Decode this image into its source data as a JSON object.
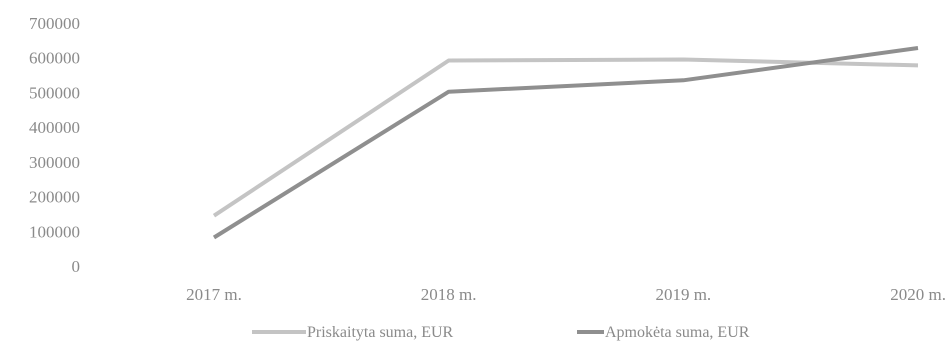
{
  "chart_data": {
    "type": "line",
    "categories": [
      "2017 m.",
      "2018 m.",
      "2019 m.",
      "2020 m."
    ],
    "series": [
      {
        "name": "Priskaityta suma, EUR",
        "values": [
          145000,
          592000,
          595000,
          578000
        ],
        "color": "#c4c4c4"
      },
      {
        "name": "Apmokėta suma, EUR",
        "values": [
          82000,
          502000,
          535000,
          628000
        ],
        "color": "#8f8f8f"
      }
    ],
    "yticks": [
      "700000",
      "600000",
      "500000",
      "400000",
      "300000",
      "200000",
      "100000",
      "0"
    ],
    "ylim": [
      0,
      700000
    ],
    "grid": false,
    "legend_position": "bottom"
  }
}
